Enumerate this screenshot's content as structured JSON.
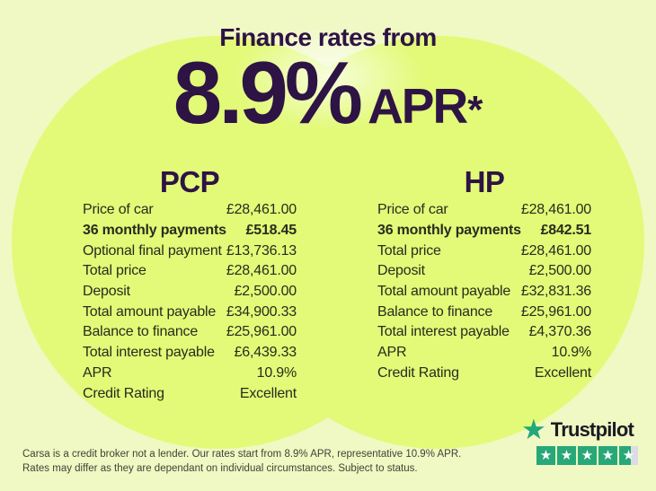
{
  "header": {
    "title": "Finance rates from",
    "rate": "8.9%",
    "rate_suffix": "APR",
    "rate_asterisk": "*"
  },
  "columns": [
    {
      "heading": "PCP",
      "rows": [
        {
          "label": "Price of car",
          "value": "£28,461.00",
          "bold": false
        },
        {
          "label": "36 monthly payments",
          "value": "£518.45",
          "bold": true
        },
        {
          "label": "Optional final payment",
          "value": "£13,736.13",
          "bold": false
        },
        {
          "label": "Total price",
          "value": "£28,461.00",
          "bold": false
        },
        {
          "label": "Deposit",
          "value": "£2,500.00",
          "bold": false
        },
        {
          "label": "Total amount payable",
          "value": "£34,900.33",
          "bold": false
        },
        {
          "label": "Balance to finance",
          "value": "£25,961.00",
          "bold": false
        },
        {
          "label": "Total interest payable",
          "value": "£6,439.33",
          "bold": false
        },
        {
          "label": "APR",
          "value": "10.9%",
          "bold": false
        },
        {
          "label": "Credit Rating",
          "value": "Excellent",
          "bold": false
        }
      ]
    },
    {
      "heading": "HP",
      "rows": [
        {
          "label": "Price of car",
          "value": "£28,461.00",
          "bold": false
        },
        {
          "label": "36 monthly payments",
          "value": "£842.51",
          "bold": true
        },
        {
          "label": "Total price",
          "value": "£28,461.00",
          "bold": false
        },
        {
          "label": "Deposit",
          "value": "£2,500.00",
          "bold": false
        },
        {
          "label": "Total amount payable",
          "value": "£32,831.36",
          "bold": false
        },
        {
          "label": "Balance to finance",
          "value": "£25,961.00",
          "bold": false
        },
        {
          "label": "Total interest payable",
          "value": "£4,370.36",
          "bold": false
        },
        {
          "label": "APR",
          "value": "10.9%",
          "bold": false
        },
        {
          "label": "Credit Rating",
          "value": "Excellent",
          "bold": false
        }
      ]
    }
  ],
  "disclaimer": {
    "lines": [
      "Carsa is a credit broker not a lender. Our rates start from 8.9% APR, representative 10.9% APR.",
      "Rates may differ as they are dependant on individual circumstances. Subject to status."
    ]
  },
  "trustpilot": {
    "brand": "Trustpilot",
    "star_count": 5,
    "stars_filled": 4.5,
    "colors": {
      "green": "#28a879",
      "empty": "#dcdde4"
    }
  },
  "colors": {
    "background": "#f0f8c3",
    "circle": "#e2fa78",
    "heading_purple": "#2e1345",
    "body_text": "#272c1d"
  }
}
